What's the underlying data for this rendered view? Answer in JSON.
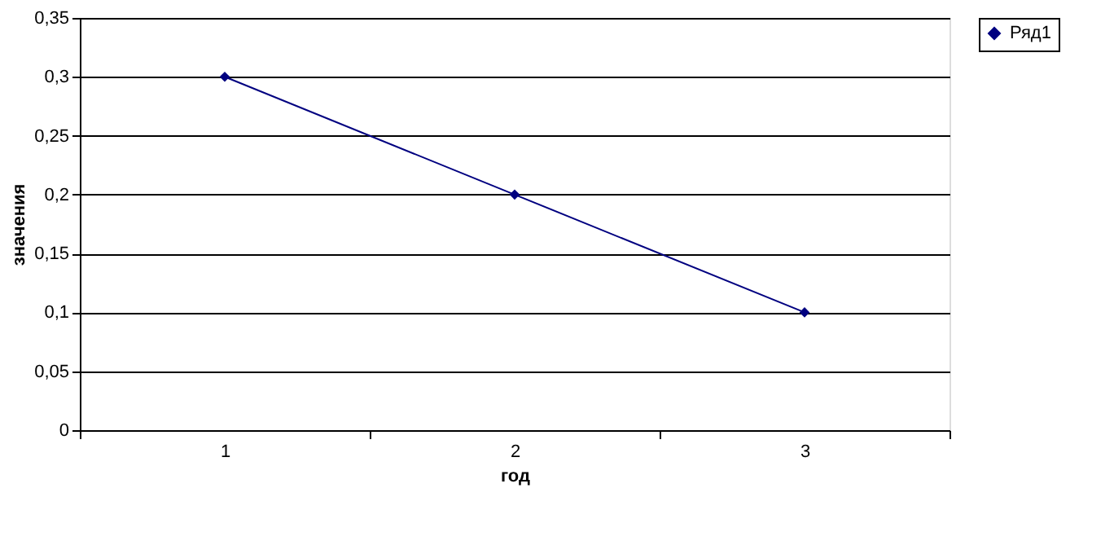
{
  "chart_data": {
    "type": "line",
    "xlabel": "год",
    "ylabel": "значения",
    "categories": [
      "1",
      "2",
      "3"
    ],
    "series": [
      {
        "name": "Ряд1",
        "color": "#000080",
        "values": [
          0.3,
          0.2,
          0.1
        ]
      }
    ],
    "ylim": [
      0,
      0.35
    ],
    "yticks": [
      0,
      {
        "value": 0.05,
        "label": "0,05"
      },
      {
        "value": 0.1,
        "label": "0,1"
      },
      {
        "value": 0.15,
        "label": "0,15"
      },
      {
        "value": 0.2,
        "label": "0,2"
      },
      {
        "value": 0.25,
        "label": "0,25"
      },
      {
        "value": 0.3,
        "label": "0,3"
      },
      {
        "value": 0.35,
        "label": "0,35"
      }
    ],
    "grid": "y",
    "legend": "right",
    "marker": "diamond",
    "line_style": "solid"
  }
}
